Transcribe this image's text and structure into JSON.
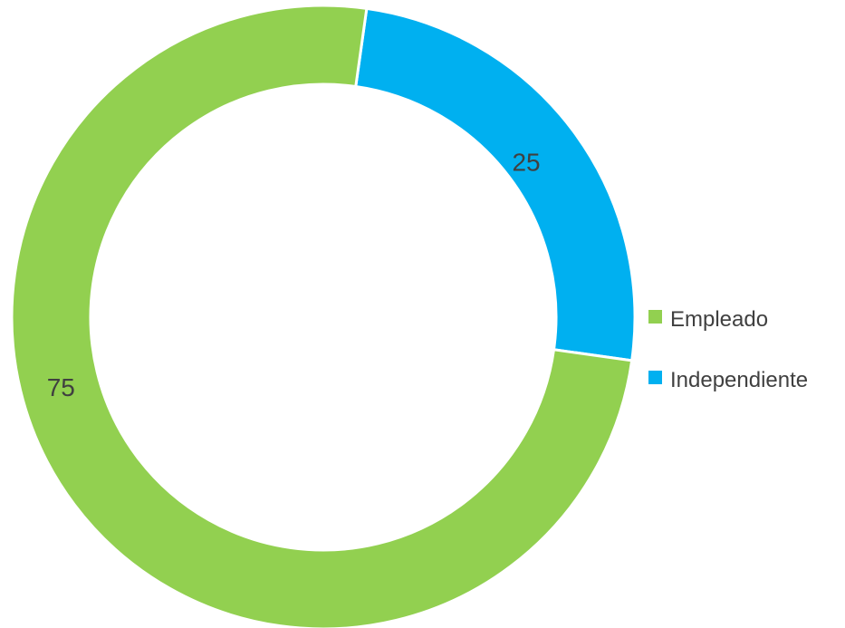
{
  "chart_data": {
    "type": "pie",
    "variant": "doughnut",
    "categories": [
      "Empleado",
      "Independiente"
    ],
    "values": [
      75,
      25
    ],
    "data_labels": [
      "75",
      "25"
    ],
    "colors": [
      "#92d050",
      "#00b0f0"
    ],
    "title": "",
    "legend": {
      "position": "right",
      "entries": [
        "Empleado",
        "Independiente"
      ]
    }
  }
}
